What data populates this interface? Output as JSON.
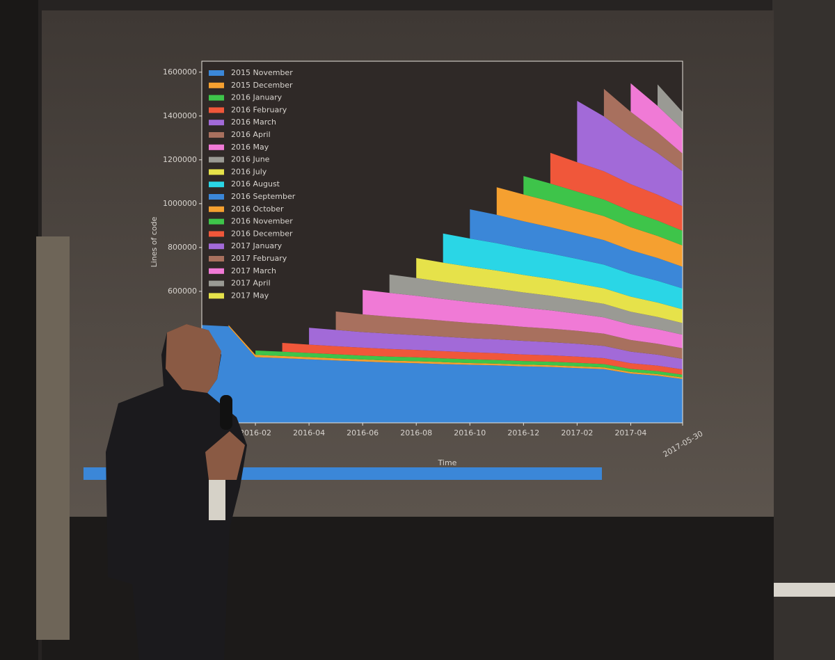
{
  "chart_data": {
    "type": "stacked_area",
    "ylabel": "Lines of code",
    "xlabel": "Time",
    "xlim": [
      "2015-12",
      "2017-05-30"
    ],
    "xticks": [
      "2016-02",
      "2016-04",
      "2016-06",
      "2016-08",
      "2016-10",
      "2016-12",
      "2017-02",
      "2017-04",
      "2017-05-30"
    ],
    "ylim": [
      0,
      1650000
    ],
    "yticks": [
      600000,
      800000,
      1000000,
      1200000,
      1400000,
      1600000
    ],
    "legend": "upper left",
    "x": [
      "2015-12",
      "2016-01",
      "2016-02",
      "2016-03",
      "2016-04",
      "2016-05",
      "2016-06",
      "2016-07",
      "2016-08",
      "2016-09",
      "2016-10",
      "2016-11",
      "2016-12",
      "2017-01",
      "2017-02",
      "2017-03",
      "2017-04",
      "2017-05",
      "2017-05-30"
    ],
    "series": [
      {
        "name": "2015 November",
        "color": "#3b87d8",
        "values": [
          446000,
          440000,
          300000,
          295000,
          290000,
          285000,
          280000,
          275000,
          272000,
          268000,
          265000,
          262000,
          258000,
          255000,
          250000,
          245000,
          225000,
          215000,
          200000
        ]
      },
      {
        "name": "2015 December",
        "color": "#f5a030",
        "values": [
          null,
          6000,
          10000,
          10000,
          10000,
          9000,
          9000,
          9000,
          9000,
          9000,
          8000,
          8000,
          8000,
          8000,
          8000,
          8000,
          7000,
          7000,
          7000
        ]
      },
      {
        "name": "2016 January",
        "color": "#3ec44a",
        "values": [
          null,
          null,
          20000,
          20000,
          19000,
          19000,
          18000,
          18000,
          18000,
          17000,
          17000,
          17000,
          16000,
          16000,
          16000,
          15000,
          14000,
          14000,
          13000
        ]
      },
      {
        "name": "2016 February",
        "color": "#f0573a",
        "values": [
          null,
          null,
          null,
          40000,
          38000,
          37000,
          36000,
          35000,
          34000,
          33000,
          32000,
          31000,
          30000,
          29000,
          28000,
          27000,
          26000,
          25000,
          24000
        ]
      },
      {
        "name": "2016 March",
        "color": "#a26ad8",
        "values": [
          null,
          null,
          null,
          null,
          77000,
          74000,
          71000,
          70000,
          67000,
          66000,
          64000,
          63000,
          62000,
          60000,
          59000,
          56000,
          53000,
          50000,
          48000
        ]
      },
      {
        "name": "2016 April",
        "color": "#a8705e",
        "values": [
          null,
          null,
          null,
          null,
          null,
          84000,
          81000,
          78000,
          76000,
          73000,
          70000,
          67000,
          64000,
          62000,
          59000,
          56000,
          53000,
          50000,
          48000
        ]
      },
      {
        "name": "2016 May",
        "color": "#f07ad6",
        "values": [
          null,
          null,
          null,
          null,
          null,
          null,
          112000,
          108000,
          104000,
          99000,
          95000,
          91000,
          87000,
          83000,
          78000,
          74000,
          70000,
          66000,
          62000
        ]
      },
      {
        "name": "2016 June",
        "color": "#9a9a94",
        "values": [
          null,
          null,
          null,
          null,
          null,
          null,
          null,
          84000,
          81000,
          78000,
          76000,
          73000,
          70000,
          67000,
          64000,
          62000,
          59000,
          56000,
          53000
        ]
      },
      {
        "name": "2016 July",
        "color": "#e6e24a",
        "values": [
          null,
          null,
          null,
          null,
          null,
          null,
          null,
          null,
          91000,
          88000,
          85000,
          83000,
          80000,
          77000,
          74000,
          71000,
          69000,
          66000,
          63000
        ]
      },
      {
        "name": "2016 August",
        "color": "#2ad6e6",
        "values": [
          null,
          null,
          null,
          null,
          null,
          null,
          null,
          null,
          null,
          133000,
          129000,
          125000,
          120000,
          116000,
          112000,
          108000,
          104000,
          99000,
          95000
        ]
      },
      {
        "name": "2016 September",
        "color": "#3b87d8",
        "values": [
          null,
          null,
          null,
          null,
          null,
          null,
          null,
          null,
          null,
          null,
          133000,
          129000,
          125000,
          120000,
          116000,
          112000,
          108000,
          104000,
          99000
        ]
      },
      {
        "name": "2016 October",
        "color": "#f5a030",
        "values": [
          null,
          null,
          null,
          null,
          null,
          null,
          null,
          null,
          null,
          null,
          null,
          126000,
          122000,
          118000,
          113000,
          109000,
          105000,
          101000,
          97000
        ]
      },
      {
        "name": "2016 November",
        "color": "#3ec44a",
        "values": [
          null,
          null,
          null,
          null,
          null,
          null,
          null,
          null,
          null,
          null,
          null,
          null,
          84000,
          81000,
          78000,
          76000,
          73000,
          70000,
          67000
        ]
      },
      {
        "name": "2016 December",
        "color": "#f0573a",
        "values": [
          null,
          null,
          null,
          null,
          null,
          null,
          null,
          null,
          null,
          null,
          null,
          null,
          null,
          140000,
          134000,
          129000,
          123000,
          118000,
          112000
        ]
      },
      {
        "name": "2017 January",
        "color": "#a26ad8",
        "values": [
          null,
          null,
          null,
          null,
          null,
          null,
          null,
          null,
          null,
          null,
          null,
          null,
          null,
          null,
          280000,
          250000,
          220000,
          190000,
          160000
        ]
      },
      {
        "name": "2017 February",
        "color": "#a8705e",
        "values": [
          null,
          null,
          null,
          null,
          null,
          null,
          null,
          null,
          null,
          null,
          null,
          null,
          null,
          null,
          null,
          126000,
          110000,
          95000,
          80000
        ]
      },
      {
        "name": "2017 March",
        "color": "#f07ad6",
        "values": [
          null,
          null,
          null,
          null,
          null,
          null,
          null,
          null,
          null,
          null,
          null,
          null,
          null,
          null,
          null,
          null,
          130000,
          120000,
          110000
        ]
      },
      {
        "name": "2017 April",
        "color": "#9a9a94",
        "values": [
          null,
          null,
          null,
          null,
          null,
          null,
          null,
          null,
          null,
          null,
          null,
          null,
          null,
          null,
          null,
          null,
          null,
          98000,
          80000
        ]
      },
      {
        "name": "2017 May",
        "color": "#e6e24a",
        "values": [
          null,
          null,
          null,
          null,
          null,
          null,
          null,
          null,
          null,
          null,
          null,
          null,
          null,
          null,
          null,
          null,
          null,
          null,
          90000
        ]
      }
    ]
  }
}
